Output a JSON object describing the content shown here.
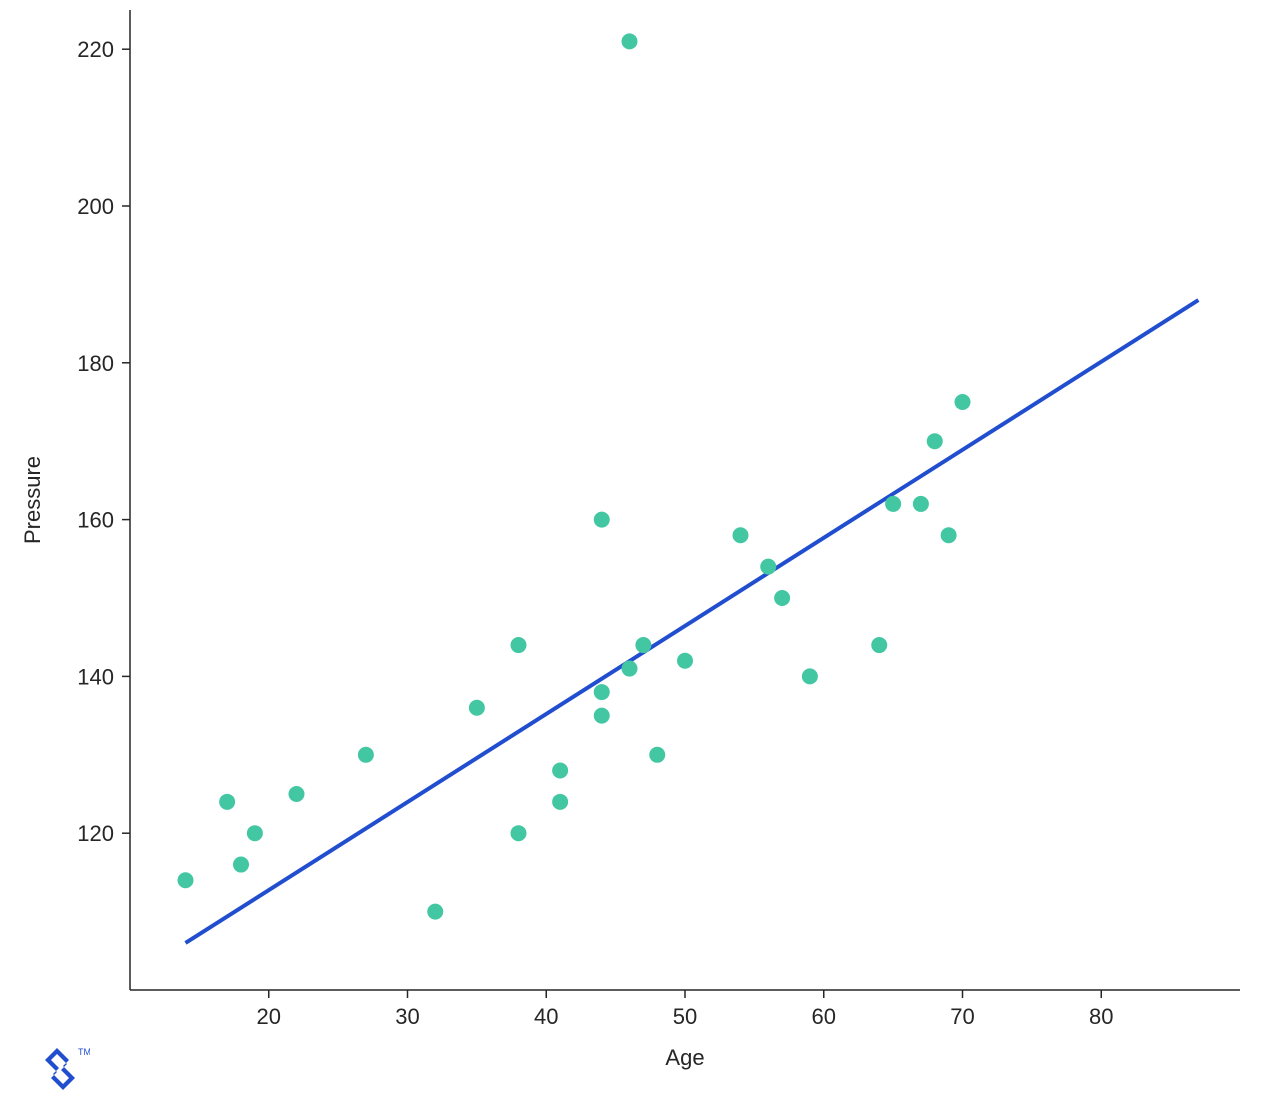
{
  "chart": {
    "type": "scatter",
    "x_label": "Age",
    "y_label": "Pressure",
    "background_color": "#ffffff",
    "axis_color": "#262626",
    "tick_font_size": 22,
    "label_font_size": 22,
    "plot": {
      "x_min": 10,
      "x_max": 90,
      "y_min": 100,
      "y_max": 225
    },
    "x_ticks": [
      20,
      30,
      40,
      50,
      60,
      70,
      80
    ],
    "y_ticks": [
      120,
      140,
      160,
      180,
      200,
      220
    ],
    "marker": {
      "color": "#42c7a2",
      "radius": 8
    },
    "regression_line": {
      "color": "#204ecf",
      "width": 4,
      "x1": 14,
      "y1": 106,
      "x2": 87,
      "y2": 188
    },
    "points": [
      {
        "x": 14,
        "y": 114
      },
      {
        "x": 17,
        "y": 124
      },
      {
        "x": 18,
        "y": 116
      },
      {
        "x": 19,
        "y": 120
      },
      {
        "x": 22,
        "y": 125
      },
      {
        "x": 27,
        "y": 130
      },
      {
        "x": 32,
        "y": 110
      },
      {
        "x": 35,
        "y": 136
      },
      {
        "x": 38,
        "y": 144
      },
      {
        "x": 38,
        "y": 120
      },
      {
        "x": 41,
        "y": 128
      },
      {
        "x": 41,
        "y": 124
      },
      {
        "x": 44,
        "y": 160
      },
      {
        "x": 44,
        "y": 138
      },
      {
        "x": 44,
        "y": 135
      },
      {
        "x": 46,
        "y": 141
      },
      {
        "x": 46,
        "y": 221
      },
      {
        "x": 47,
        "y": 144
      },
      {
        "x": 48,
        "y": 130
      },
      {
        "x": 50,
        "y": 142
      },
      {
        "x": 54,
        "y": 158
      },
      {
        "x": 56,
        "y": 154
      },
      {
        "x": 57,
        "y": 150
      },
      {
        "x": 59,
        "y": 140
      },
      {
        "x": 64,
        "y": 144
      },
      {
        "x": 65,
        "y": 162
      },
      {
        "x": 67,
        "y": 162
      },
      {
        "x": 68,
        "y": 170
      },
      {
        "x": 69,
        "y": 158
      },
      {
        "x": 70,
        "y": 175
      }
    ]
  },
  "logo": {
    "color": "#204ecf",
    "tm_text": "TM"
  }
}
